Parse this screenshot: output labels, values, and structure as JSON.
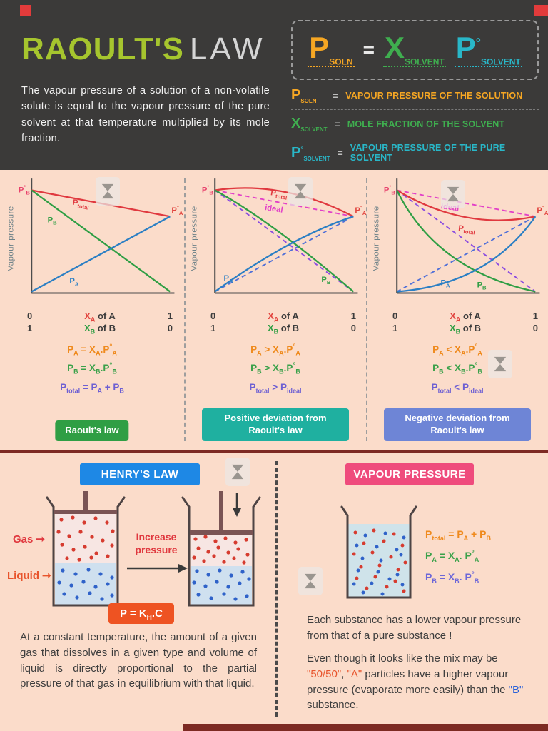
{
  "page": {
    "bg": "#fbdcca",
    "header_bg": "#3b3a39",
    "accent_red": "#e23b3b",
    "divider_maroon": "#7d2a23"
  },
  "header": {
    "title_primary": "RAOULT'S",
    "title_secondary": "LAW",
    "title_primary_color": "#a6c52e",
    "description": "The vapour pressure of a solution of a non-volatile solute is equal to the vapour pressure of the pure solvent at that temperature multiplied by its mole fraction.",
    "formula": {
      "lhs": [
        {
          "t": "P"
        },
        {
          "t": "SOLN",
          "s": "sub"
        }
      ],
      "eq": "=",
      "mid": [
        {
          "t": "X"
        },
        {
          "t": "SOLVENT",
          "s": "sub"
        }
      ],
      "rhs": [
        {
          "t": "P"
        },
        {
          "t": "°",
          "s": "sup"
        },
        {
          "t": "SOLVENT",
          "s": "sub"
        }
      ],
      "lhs_color": "#f5a623",
      "mid_color": "#3fae4f",
      "rhs_color": "#29b7c8"
    },
    "legend": [
      {
        "symbol": [
          {
            "t": "P"
          },
          {
            "t": "SOLN",
            "s": "sub"
          }
        ],
        "eq": "=",
        "text": "VAPOUR PRESSURE OF THE SOLUTION",
        "color": "#f5a623"
      },
      {
        "symbol": [
          {
            "t": "X"
          },
          {
            "t": "SOLVENT",
            "s": "sub"
          }
        ],
        "eq": "=",
        "text": "MOLE FRACTION OF THE SOLVENT",
        "color": "#3fae4f"
      },
      {
        "symbol": [
          {
            "t": "P"
          },
          {
            "t": "°",
            "s": "sup"
          },
          {
            "t": "SOLVENT",
            "s": "sub"
          }
        ],
        "eq": "=",
        "text": "VAPOUR PRESSURE OF THE PURE SOLVENT",
        "color": "#29b7c8"
      }
    ]
  },
  "x_axis": {
    "r1l": "0",
    "r1c": [
      {
        "t": "X",
        "c": "#e2453f"
      },
      {
        "t": "A",
        "s": "sub",
        "c": "#e2453f"
      },
      {
        "t": " of A"
      }
    ],
    "r1r": "1",
    "r2l": "1",
    "r2c": [
      {
        "t": "X",
        "c": "#2f9e44"
      },
      {
        "t": "B",
        "s": "sub",
        "c": "#2f9e44"
      },
      {
        "t": " of B"
      }
    ],
    "r2r": "0"
  },
  "graphs": [
    {
      "y_label": "Vapour pressure",
      "labels": {
        "pb0": {
          "m": "P",
          "d": "°",
          "s": "B"
        },
        "pa0": {
          "m": "P",
          "d": "°",
          "s": "A"
        },
        "ptotal": {
          "m": "P",
          "s": "total"
        },
        "pa": {
          "m": "P",
          "s": "A"
        },
        "pb": {
          "m": "P",
          "s": "B"
        }
      },
      "eq1": {
        "color": "#ef8a1d",
        "parts": [
          {
            "t": "P"
          },
          {
            "t": "A",
            "s": "sub"
          },
          {
            "t": " = "
          },
          {
            "t": "X"
          },
          {
            "t": "A",
            "s": "sub"
          },
          {
            "t": "."
          },
          {
            "t": "P"
          },
          {
            "t": "°",
            "s": "sup"
          },
          {
            "t": "A",
            "s": "sub"
          }
        ]
      },
      "eq2": {
        "color": "#3aa14a",
        "parts": [
          {
            "t": "P"
          },
          {
            "t": "B",
            "s": "sub"
          },
          {
            "t": " = "
          },
          {
            "t": "X"
          },
          {
            "t": "B",
            "s": "sub"
          },
          {
            "t": "."
          },
          {
            "t": "P"
          },
          {
            "t": "°",
            "s": "sup"
          },
          {
            "t": "B",
            "s": "sub"
          }
        ]
      },
      "eq3": {
        "color": "#6d5fd3",
        "parts": [
          {
            "t": "P"
          },
          {
            "t": "total",
            "s": "sub"
          },
          {
            "t": " = "
          },
          {
            "t": "P"
          },
          {
            "t": "A",
            "s": "sub"
          },
          {
            "t": " + "
          },
          {
            "t": "P"
          },
          {
            "t": "B",
            "s": "sub"
          }
        ]
      },
      "badge": "Raoult's law",
      "badge_color": "#2f9e44"
    },
    {
      "y_label": "Vapour pressure",
      "labels": {
        "pb0": {
          "m": "P",
          "d": "°",
          "s": "B"
        },
        "pa0": {
          "m": "P",
          "d": "°",
          "s": "A"
        },
        "ptotal": {
          "m": "P",
          "s": "total"
        },
        "ideal": "ideal",
        "pa": {
          "m": "P",
          "s": "A"
        },
        "pb": {
          "m": "P",
          "s": "B"
        }
      },
      "eq1": {
        "color": "#ef8a1d",
        "parts": [
          {
            "t": "P"
          },
          {
            "t": "A",
            "s": "sub"
          },
          {
            "t": " > "
          },
          {
            "t": "X"
          },
          {
            "t": "A",
            "s": "sub"
          },
          {
            "t": "."
          },
          {
            "t": "P"
          },
          {
            "t": "°",
            "s": "sup"
          },
          {
            "t": "A",
            "s": "sub"
          }
        ]
      },
      "eq2": {
        "color": "#3aa14a",
        "parts": [
          {
            "t": "P"
          },
          {
            "t": "B",
            "s": "sub"
          },
          {
            "t": " > "
          },
          {
            "t": "X"
          },
          {
            "t": "B",
            "s": "sub"
          },
          {
            "t": "."
          },
          {
            "t": "P"
          },
          {
            "t": "°",
            "s": "sup"
          },
          {
            "t": "B",
            "s": "sub"
          }
        ]
      },
      "eq3": {
        "color": "#6d5fd3",
        "parts": [
          {
            "t": "P"
          },
          {
            "t": "total",
            "s": "sub"
          },
          {
            "t": " > "
          },
          {
            "t": "P"
          },
          {
            "t": "ideal",
            "s": "sub"
          }
        ]
      },
      "badge": "Positive deviation from Raoult's law",
      "badge_color": "#1fb0a0"
    },
    {
      "y_label": "Vapour pressure",
      "labels": {
        "pb0": {
          "m": "P",
          "d": "°",
          "s": "B"
        },
        "pa0": {
          "m": "P",
          "d": "°",
          "s": "A"
        },
        "ptotal": {
          "m": "P",
          "s": "total"
        },
        "ideal": "ideal",
        "pa": {
          "m": "P",
          "s": "A"
        },
        "pb": {
          "m": "P",
          "s": "B"
        }
      },
      "eq1": {
        "color": "#ef8a1d",
        "parts": [
          {
            "t": "P"
          },
          {
            "t": "A",
            "s": "sub"
          },
          {
            "t": " < "
          },
          {
            "t": "X"
          },
          {
            "t": "A",
            "s": "sub"
          },
          {
            "t": "."
          },
          {
            "t": "P"
          },
          {
            "t": "°",
            "s": "sup"
          },
          {
            "t": "A",
            "s": "sub"
          }
        ]
      },
      "eq2": {
        "color": "#3aa14a",
        "parts": [
          {
            "t": "P"
          },
          {
            "t": "B",
            "s": "sub"
          },
          {
            "t": " < "
          },
          {
            "t": "X"
          },
          {
            "t": "B",
            "s": "sub"
          },
          {
            "t": "."
          },
          {
            "t": "P"
          },
          {
            "t": "°",
            "s": "sup"
          },
          {
            "t": "B",
            "s": "sub"
          }
        ]
      },
      "eq3": {
        "color": "#6d5fd3",
        "parts": [
          {
            "t": "P"
          },
          {
            "t": "total",
            "s": "sub"
          },
          {
            "t": " < "
          },
          {
            "t": "P"
          },
          {
            "t": "ideal",
            "s": "sub"
          }
        ]
      },
      "badge": "Negative deviation from Raoult's law",
      "badge_color": "#6e85d6"
    }
  ],
  "henry": {
    "title": "HENRY'S LAW",
    "title_bg": "#1e88e5",
    "gas_label": "Gas",
    "liquid_label": "Liquid",
    "arrow_line1": "Increase",
    "arrow_line2": "pressure",
    "equation": {
      "color_bg": "#ee5322",
      "parts": [
        {
          "t": "P = K"
        },
        {
          "t": "H",
          "s": "sub"
        },
        {
          "t": ".C"
        }
      ]
    },
    "paragraph": "At a constant temperature, the amount of a given gas that dissolves in a given type and volume of liquid is directly proportional to the partial pressure of that gas in equilibrium with that liquid."
  },
  "vapour": {
    "title": "VAPOUR PRESSURE",
    "title_bg": "#ef4b7c",
    "eq1": {
      "color": "#ef8a1d",
      "parts": [
        {
          "t": "P"
        },
        {
          "t": "total",
          "s": "sub"
        },
        {
          "t": " = "
        },
        {
          "t": "P"
        },
        {
          "t": "A",
          "s": "sub"
        },
        {
          "t": " + "
        },
        {
          "t": "P"
        },
        {
          "t": "B",
          "s": "sub"
        }
      ]
    },
    "eq2": {
      "color": "#3aa14a",
      "parts": [
        {
          "t": "P"
        },
        {
          "t": "A",
          "s": "sub"
        },
        {
          "t": " = "
        },
        {
          "t": "X"
        },
        {
          "t": "A",
          "s": "sub"
        },
        {
          "t": ". "
        },
        {
          "t": "P"
        },
        {
          "t": "°",
          "s": "sup"
        },
        {
          "t": "A",
          "s": "sub"
        }
      ]
    },
    "eq3": {
      "color": "#6d67d8",
      "parts": [
        {
          "t": "P"
        },
        {
          "t": "B",
          "s": "sub"
        },
        {
          "t": " = "
        },
        {
          "t": "X"
        },
        {
          "t": "B",
          "s": "sub"
        },
        {
          "t": ". "
        },
        {
          "t": "P"
        },
        {
          "t": "°",
          "s": "sup"
        },
        {
          "t": "B",
          "s": "sub"
        }
      ]
    },
    "paragraph1": "Each substance has a lower vapour pressure from that of a pure substance !",
    "paragraph2": [
      {
        "t": "Even though it looks like the mix may be "
      },
      {
        "t": "\"50/50\"",
        "c": "#e8542c"
      },
      {
        "t": ", "
      },
      {
        "t": "\"A\"",
        "c": "#e8542c"
      },
      {
        "t": " particles have a higher vapour pressure (evaporate more easily) than the "
      },
      {
        "t": "\"B\"",
        "c": "#2b62d9"
      },
      {
        "t": " substance."
      }
    ]
  }
}
